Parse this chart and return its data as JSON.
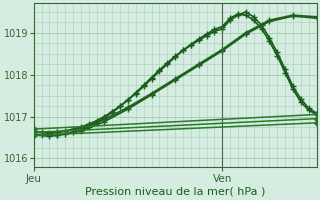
{
  "background_color": "#d4ede0",
  "grid_color": "#a8ccb8",
  "xlim": [
    0,
    36
  ],
  "ylim": [
    1015.8,
    1019.7
  ],
  "yticks": [
    1016,
    1017,
    1018,
    1019
  ],
  "xlabel": "Pression niveau de la mer( hPa )",
  "xtick_positions": [
    0,
    24
  ],
  "xtick_labels": [
    "Jeu",
    "Ven"
  ],
  "vline_x": 24,
  "series": [
    {
      "x": [
        0,
        1,
        2,
        3,
        4,
        5,
        6,
        7,
        8,
        9,
        10,
        11,
        12,
        13,
        14,
        15,
        16,
        17,
        18,
        19,
        20,
        21,
        22,
        23,
        24,
        25,
        26,
        27,
        28,
        29,
        30,
        31,
        32,
        33,
        34,
        35,
        36
      ],
      "y": [
        1016.65,
        1016.62,
        1016.6,
        1016.62,
        1016.65,
        1016.7,
        1016.75,
        1016.82,
        1016.9,
        1017.0,
        1017.12,
        1017.25,
        1017.4,
        1017.55,
        1017.72,
        1017.9,
        1018.08,
        1018.25,
        1018.42,
        1018.58,
        1018.72,
        1018.85,
        1018.97,
        1019.08,
        1019.15,
        1019.35,
        1019.45,
        1019.42,
        1019.3,
        1019.1,
        1018.8,
        1018.45,
        1018.05,
        1017.65,
        1017.35,
        1017.15,
        1017.05
      ],
      "marker": "+",
      "lw": 1.2,
      "color": "#1a5c1a",
      "ms": 4,
      "mew": 1.0
    },
    {
      "x": [
        0,
        1,
        2,
        3,
        4,
        5,
        6,
        7,
        8,
        9,
        10,
        11,
        12,
        13,
        14,
        15,
        16,
        17,
        18,
        19,
        20,
        21,
        22,
        23,
        24,
        25,
        26,
        27,
        28,
        29,
        30,
        31,
        32,
        33,
        34,
        35,
        36
      ],
      "y": [
        1016.58,
        1016.55,
        1016.53,
        1016.55,
        1016.58,
        1016.63,
        1016.68,
        1016.75,
        1016.85,
        1016.97,
        1017.1,
        1017.24,
        1017.4,
        1017.57,
        1017.75,
        1017.93,
        1018.11,
        1018.28,
        1018.44,
        1018.58,
        1018.7,
        1018.82,
        1018.93,
        1019.03,
        1019.1,
        1019.3,
        1019.42,
        1019.5,
        1019.38,
        1019.18,
        1018.88,
        1018.53,
        1018.13,
        1017.72,
        1017.42,
        1017.2,
        1017.08
      ],
      "marker": "+",
      "lw": 1.2,
      "color": "#1a5c1a",
      "ms": 4,
      "mew": 1.0
    },
    {
      "x": [
        0,
        3,
        6,
        9,
        12,
        15,
        18,
        21,
        24,
        27,
        30,
        33,
        36
      ],
      "y": [
        1016.62,
        1016.63,
        1016.72,
        1016.93,
        1017.22,
        1017.55,
        1017.9,
        1018.25,
        1018.6,
        1019.0,
        1019.3,
        1019.42,
        1019.38
      ],
      "marker": "+",
      "lw": 1.3,
      "color": "#206020",
      "ms": 4,
      "mew": 1.0
    },
    {
      "x": [
        0,
        3,
        6,
        9,
        12,
        15,
        18,
        21,
        24,
        27,
        30,
        33,
        36
      ],
      "y": [
        1016.55,
        1016.56,
        1016.65,
        1016.88,
        1017.18,
        1017.52,
        1017.87,
        1018.22,
        1018.57,
        1018.97,
        1019.27,
        1019.4,
        1019.35
      ],
      "marker": "+",
      "lw": 1.3,
      "color": "#206020",
      "ms": 4,
      "mew": 1.0
    },
    {
      "x": [
        0,
        36
      ],
      "y": [
        1016.62,
        1016.95
      ],
      "marker": "D",
      "lw": 1.1,
      "color": "#2a7a2a",
      "ms": 3,
      "mew": 0.8
    },
    {
      "x": [
        0,
        36
      ],
      "y": [
        1016.7,
        1017.05
      ],
      "marker": "D",
      "lw": 1.1,
      "color": "#2a7a2a",
      "ms": 3,
      "mew": 0.8
    },
    {
      "x": [
        0,
        36
      ],
      "y": [
        1016.55,
        1016.85
      ],
      "marker": "D",
      "lw": 1.1,
      "color": "#2a7a2a",
      "ms": 3,
      "mew": 0.8
    }
  ]
}
